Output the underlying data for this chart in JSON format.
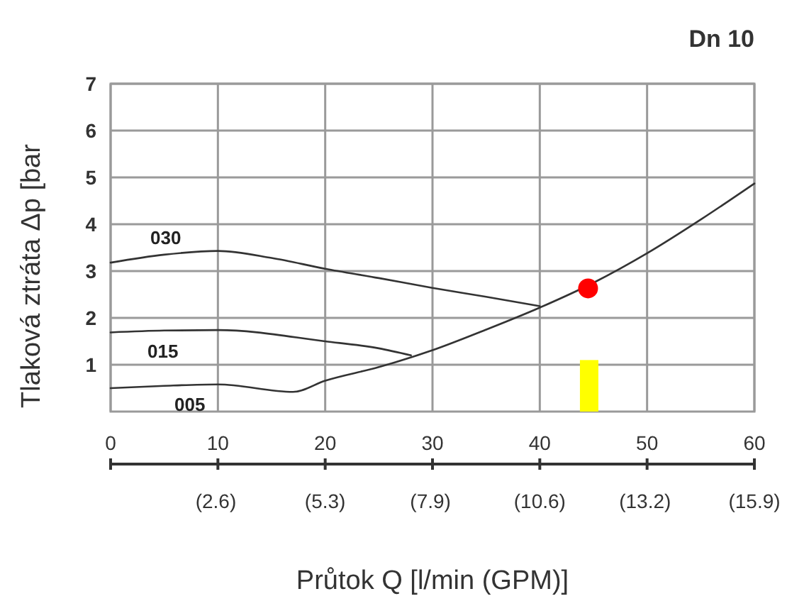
{
  "chart_data": {
    "type": "line",
    "title": "Dn 10",
    "xlabel": "Průtok Q [l/min (GPM)]",
    "ylabel": "Tlaková ztráta Δp [bar",
    "xlim": [
      0,
      60
    ],
    "xticks": [
      0,
      10,
      20,
      30,
      40,
      50,
      60
    ],
    "x2lim": [
      0,
      15.9
    ],
    "x2ticks": [
      {
        "value": 2.6,
        "label": "(2.6)"
      },
      {
        "value": 5.3,
        "label": "(5.3)"
      },
      {
        "value": 7.9,
        "label": "(7.9)"
      },
      {
        "value": 10.6,
        "label": "(10.6)"
      },
      {
        "value": 13.2,
        "label": "(13.2)"
      },
      {
        "value": 15.9,
        "label": "(15.9)"
      }
    ],
    "ylim": [
      0,
      7
    ],
    "yticks": [
      1,
      2,
      3,
      4,
      5,
      6,
      7
    ],
    "grid": true,
    "series": [
      {
        "name": "030",
        "color": "#333333",
        "x": [
          0,
          5,
          10,
          15,
          20,
          25,
          30,
          35,
          40
        ],
        "values": [
          3.18,
          3.35,
          3.43,
          3.28,
          3.05,
          2.85,
          2.64,
          2.45,
          2.25
        ]
      },
      {
        "name": "015",
        "color": "#333333",
        "x": [
          0,
          5,
          10,
          20,
          25,
          28
        ],
        "values": [
          1.69,
          1.73,
          1.74,
          1.5,
          1.35,
          1.2
        ]
      },
      {
        "name": "005",
        "color": "#333333",
        "x": [
          0,
          5,
          10,
          17,
          20,
          25,
          30,
          35,
          40,
          45,
          50,
          55,
          60
        ],
        "values": [
          0.5,
          0.55,
          0.58,
          0.42,
          0.66,
          0.95,
          1.31,
          1.75,
          2.22,
          2.75,
          3.38,
          4.1,
          4.87
        ]
      },
      {
        "type": "bar",
        "color": "#ffff00",
        "x": [
          44.6
        ],
        "values": [
          1.1
        ]
      },
      {
        "type": "scatter",
        "color": "#ff0000",
        "x": [
          44.5
        ],
        "values": [
          2.63
        ]
      }
    ]
  }
}
